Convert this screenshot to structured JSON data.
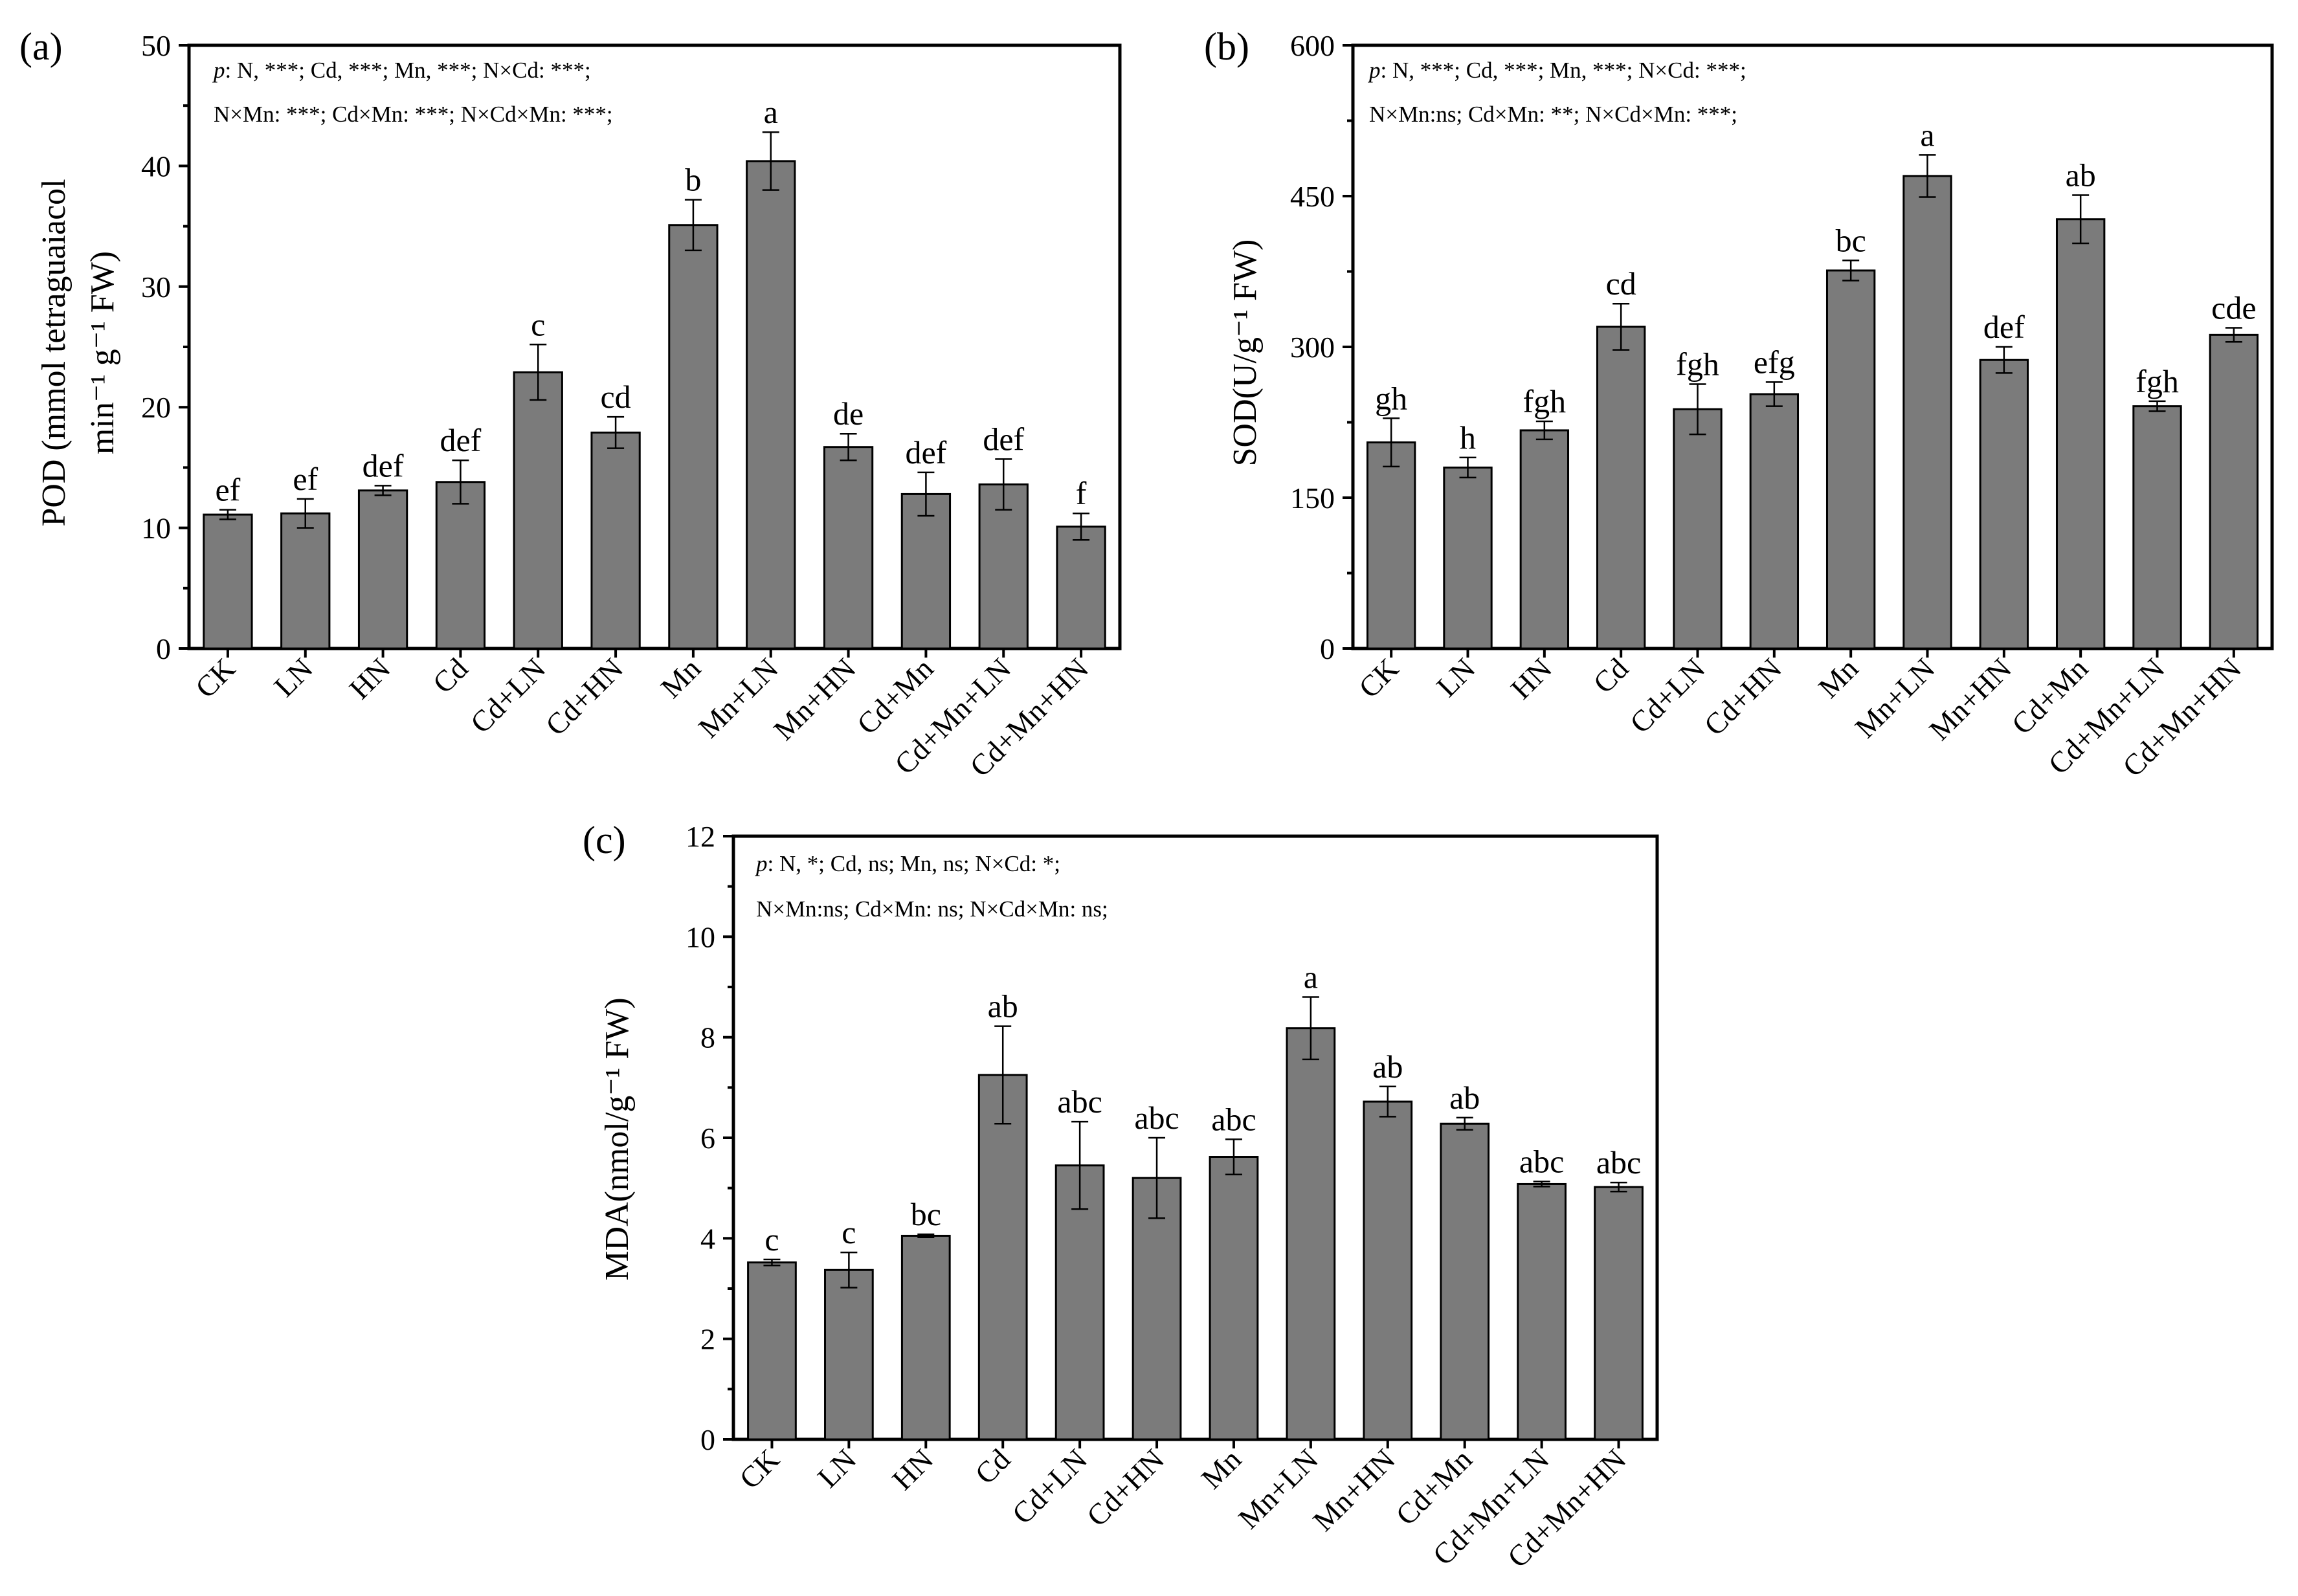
{
  "figure": {
    "categories": [
      "CK",
      "LN",
      "HN",
      "Cd",
      "Cd+LN",
      "Cd+HN",
      "Mn",
      "Mn+LN",
      "Mn+HN",
      "Cd+Mn",
      "Cd+Mn+LN",
      "Cd+Mn+HN"
    ],
    "colors": {
      "bar": "#7b7b7b",
      "axis": "#000000",
      "background": "#ffffff"
    }
  },
  "chart_data": [
    {
      "id": "a",
      "type": "bar",
      "panel_label": "(a)",
      "title": "",
      "xlabel": "",
      "ylabel_lines": [
        "POD (mmol tetraguaiacol",
        "min⁻¹ g⁻¹ FW)"
      ],
      "ylim": [
        0,
        50
      ],
      "yticks": [
        0,
        10,
        20,
        30,
        40,
        50
      ],
      "categories": [
        "CK",
        "LN",
        "HN",
        "Cd",
        "Cd+LN",
        "Cd+HN",
        "Mn",
        "Mn+LN",
        "Mn+HN",
        "Cd+Mn",
        "Cd+Mn+LN",
        "Cd+Mn+HN"
      ],
      "values": [
        11.1,
        11.2,
        13.1,
        13.8,
        22.9,
        17.9,
        35.1,
        40.4,
        16.7,
        12.8,
        13.6,
        10.1
      ],
      "errors": [
        0.4,
        1.2,
        0.4,
        1.8,
        2.3,
        1.3,
        2.1,
        2.4,
        1.1,
        1.8,
        2.1,
        1.1
      ],
      "significance": [
        "ef",
        "ef",
        "def",
        "def",
        "c",
        "cd",
        "b",
        "a",
        "de",
        "def",
        "def",
        "f"
      ],
      "annotations": [
        {
          "italic": "p",
          "text": ": N, ***; Cd, ***; Mn, ***; N×Cd: ***;"
        },
        {
          "italic": "",
          "text": "N×Mn: ***; Cd×Mn: ***; N×Cd×Mn: ***;"
        }
      ]
    },
    {
      "id": "b",
      "type": "bar",
      "panel_label": "(b)",
      "title": "",
      "xlabel": "",
      "ylabel_lines": [
        "SOD(U/g⁻¹ FW)"
      ],
      "ylim": [
        0,
        600
      ],
      "yticks": [
        0,
        150,
        300,
        450,
        600
      ],
      "categories": [
        "CK",
        "LN",
        "HN",
        "Cd",
        "Cd+LN",
        "Cd+HN",
        "Mn",
        "Mn+LN",
        "Mn+HN",
        "Cd+Mn",
        "Cd+Mn+LN",
        "Cd+Mn+HN"
      ],
      "values": [
        205,
        180,
        217,
        320,
        238,
        253,
        376,
        470,
        287,
        427,
        241,
        312
      ],
      "errors": [
        24,
        10,
        9,
        23,
        25,
        12,
        10,
        21,
        13,
        24,
        5,
        7
      ],
      "significance": [
        "gh",
        "h",
        "fgh",
        "cd",
        "fgh",
        "efg",
        "bc",
        "a",
        "def",
        "ab",
        "fgh",
        "cde"
      ],
      "annotations": [
        {
          "italic": "p",
          "text": ": N, ***; Cd, ***; Mn, ***; N×Cd: ***;"
        },
        {
          "italic": "",
          "text": "N×Mn:ns; Cd×Mn: **; N×Cd×Mn: ***;"
        }
      ]
    },
    {
      "id": "c",
      "type": "bar",
      "panel_label": "(c)",
      "title": "",
      "xlabel": "",
      "ylabel_lines": [
        "MDA(nmol/g⁻¹ FW)"
      ],
      "ylim": [
        0,
        12
      ],
      "yticks": [
        0,
        2,
        4,
        6,
        8,
        10,
        12
      ],
      "categories": [
        "CK",
        "LN",
        "HN",
        "Cd",
        "Cd+LN",
        "Cd+HN",
        "Mn",
        "Mn+LN",
        "Mn+HN",
        "Cd+Mn",
        "Cd+Mn+LN",
        "Cd+Mn+HN"
      ],
      "values": [
        3.52,
        3.37,
        4.05,
        7.25,
        5.45,
        5.2,
        5.62,
        8.18,
        6.72,
        6.28,
        5.08,
        5.02
      ],
      "errors": [
        0.06,
        0.35,
        0.03,
        0.97,
        0.87,
        0.8,
        0.35,
        0.62,
        0.3,
        0.12,
        0.05,
        0.09
      ],
      "significance": [
        "c",
        "c",
        "bc",
        "ab",
        "abc",
        "abc",
        "abc",
        "a",
        "ab",
        "ab",
        "abc",
        "abc"
      ],
      "annotations": [
        {
          "italic": "p",
          "text": ": N, *; Cd, ns; Mn, ns; N×Cd: *;"
        },
        {
          "italic": "",
          "text": "N×Mn:ns; Cd×Mn: ns; N×Cd×Mn: ns;"
        }
      ]
    }
  ]
}
